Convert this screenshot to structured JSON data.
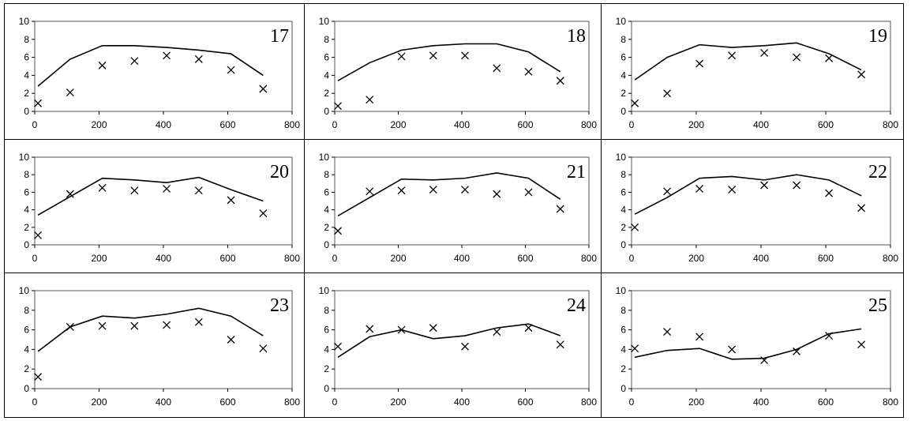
{
  "chart_data": [
    {
      "type": "line",
      "title": "17",
      "x": [
        10,
        110,
        210,
        310,
        410,
        510,
        610,
        710
      ],
      "series": [
        {
          "kind": "line",
          "values": [
            2.8,
            5.8,
            7.3,
            7.3,
            7.1,
            6.8,
            6.4,
            4.0
          ]
        },
        {
          "kind": "scatter",
          "values": [
            0.9,
            2.1,
            5.1,
            5.6,
            6.2,
            5.8,
            4.6,
            2.5
          ]
        }
      ],
      "xlim": [
        0,
        800
      ],
      "ylim": [
        0,
        10
      ],
      "xticks": [
        "0",
        "200",
        "400",
        "600",
        "800"
      ],
      "yticks": [
        "0",
        "2",
        "4",
        "6",
        "8",
        "10"
      ]
    },
    {
      "type": "line",
      "title": "18",
      "x": [
        10,
        110,
        210,
        310,
        410,
        510,
        610,
        710
      ],
      "series": [
        {
          "kind": "line",
          "values": [
            3.4,
            5.4,
            6.8,
            7.3,
            7.5,
            7.5,
            6.6,
            4.4
          ]
        },
        {
          "kind": "scatter",
          "values": [
            0.6,
            1.3,
            6.1,
            6.2,
            6.2,
            4.8,
            4.4,
            3.4
          ]
        }
      ],
      "xlim": [
        0,
        800
      ],
      "ylim": [
        0,
        10
      ],
      "xticks": [
        "0",
        "200",
        "400",
        "600",
        "800"
      ],
      "yticks": [
        "0",
        "2",
        "4",
        "6",
        "8",
        "10"
      ]
    },
    {
      "type": "line",
      "title": "19",
      "x": [
        10,
        110,
        210,
        310,
        410,
        510,
        610,
        710
      ],
      "series": [
        {
          "kind": "line",
          "values": [
            3.5,
            6.0,
            7.4,
            7.1,
            7.3,
            7.6,
            6.4,
            4.6
          ]
        },
        {
          "kind": "scatter",
          "values": [
            0.9,
            2.0,
            5.3,
            6.2,
            6.5,
            6.0,
            5.9,
            4.1
          ]
        }
      ],
      "xlim": [
        0,
        800
      ],
      "ylim": [
        0,
        10
      ],
      "xticks": [
        "0",
        "200",
        "400",
        "600",
        "800"
      ],
      "yticks": [
        "0",
        "2",
        "4",
        "6",
        "8",
        "10"
      ]
    },
    {
      "type": "line",
      "title": "20",
      "x": [
        10,
        110,
        210,
        310,
        410,
        510,
        610,
        710
      ],
      "series": [
        {
          "kind": "line",
          "values": [
            3.4,
            5.5,
            7.6,
            7.4,
            7.1,
            7.7,
            6.3,
            5.0
          ]
        },
        {
          "kind": "scatter",
          "values": [
            1.1,
            5.8,
            6.5,
            6.2,
            6.4,
            6.2,
            5.1,
            3.6
          ]
        }
      ],
      "xlim": [
        0,
        800
      ],
      "ylim": [
        0,
        10
      ],
      "xticks": [
        "0",
        "200",
        "400",
        "600",
        "800"
      ],
      "yticks": [
        "0",
        "2",
        "4",
        "6",
        "8",
        "10"
      ]
    },
    {
      "type": "line",
      "title": "21",
      "x": [
        10,
        110,
        210,
        310,
        410,
        510,
        610,
        710
      ],
      "series": [
        {
          "kind": "line",
          "values": [
            3.3,
            5.4,
            7.5,
            7.4,
            7.6,
            8.2,
            7.6,
            5.2
          ]
        },
        {
          "kind": "scatter",
          "values": [
            1.6,
            6.1,
            6.2,
            6.3,
            6.3,
            5.8,
            6.0,
            4.1
          ]
        }
      ],
      "xlim": [
        0,
        800
      ],
      "ylim": [
        0,
        10
      ],
      "xticks": [
        "0",
        "200",
        "400",
        "600",
        "800"
      ],
      "yticks": [
        "0",
        "2",
        "4",
        "6",
        "8",
        "10"
      ]
    },
    {
      "type": "line",
      "title": "22",
      "x": [
        10,
        110,
        210,
        310,
        410,
        510,
        610,
        710
      ],
      "series": [
        {
          "kind": "line",
          "values": [
            3.5,
            5.4,
            7.6,
            7.8,
            7.4,
            8.0,
            7.4,
            5.6
          ]
        },
        {
          "kind": "scatter",
          "values": [
            2.0,
            6.1,
            6.4,
            6.3,
            6.8,
            6.8,
            5.9,
            4.2
          ]
        }
      ],
      "xlim": [
        0,
        800
      ],
      "ylim": [
        0,
        10
      ],
      "xticks": [
        "0",
        "200",
        "400",
        "600",
        "800"
      ],
      "yticks": [
        "0",
        "2",
        "4",
        "6",
        "8",
        "10"
      ]
    },
    {
      "type": "line",
      "title": "23",
      "x": [
        10,
        110,
        210,
        310,
        410,
        510,
        610,
        710
      ],
      "series": [
        {
          "kind": "line",
          "values": [
            3.8,
            6.3,
            7.4,
            7.2,
            7.6,
            8.2,
            7.4,
            5.4
          ]
        },
        {
          "kind": "scatter",
          "values": [
            1.2,
            6.3,
            6.4,
            6.4,
            6.5,
            6.8,
            5.0,
            4.1
          ]
        }
      ],
      "xlim": [
        0,
        800
      ],
      "ylim": [
        0,
        10
      ],
      "xticks": [
        "0",
        "200",
        "400",
        "600",
        "800"
      ],
      "yticks": [
        "0",
        "2",
        "4",
        "6",
        "8",
        "10"
      ]
    },
    {
      "type": "line",
      "title": "24",
      "x": [
        10,
        110,
        210,
        310,
        410,
        510,
        610,
        710
      ],
      "series": [
        {
          "kind": "line",
          "values": [
            3.2,
            5.3,
            6.0,
            5.1,
            5.4,
            6.2,
            6.6,
            5.4
          ]
        },
        {
          "kind": "scatter",
          "values": [
            4.3,
            6.1,
            6.0,
            6.2,
            4.3,
            5.8,
            6.2,
            4.5
          ]
        }
      ],
      "xlim": [
        0,
        800
      ],
      "ylim": [
        0,
        10
      ],
      "xticks": [
        "0",
        "200",
        "400",
        "600",
        "800"
      ],
      "yticks": [
        "0",
        "2",
        "4",
        "6",
        "8",
        "10"
      ]
    },
    {
      "type": "line",
      "title": "25",
      "x": [
        10,
        110,
        210,
        310,
        410,
        510,
        610,
        710
      ],
      "series": [
        {
          "kind": "line",
          "values": [
            3.2,
            3.9,
            4.1,
            3.0,
            3.1,
            4.0,
            5.6,
            6.1
          ]
        },
        {
          "kind": "scatter",
          "values": [
            4.1,
            5.8,
            5.3,
            4.0,
            2.9,
            3.8,
            5.4,
            4.5
          ]
        }
      ],
      "xlim": [
        0,
        800
      ],
      "ylim": [
        0,
        10
      ],
      "xticks": [
        "0",
        "200",
        "400",
        "600",
        "800"
      ],
      "yticks": [
        "0",
        "2",
        "4",
        "6",
        "8",
        "10"
      ]
    }
  ]
}
